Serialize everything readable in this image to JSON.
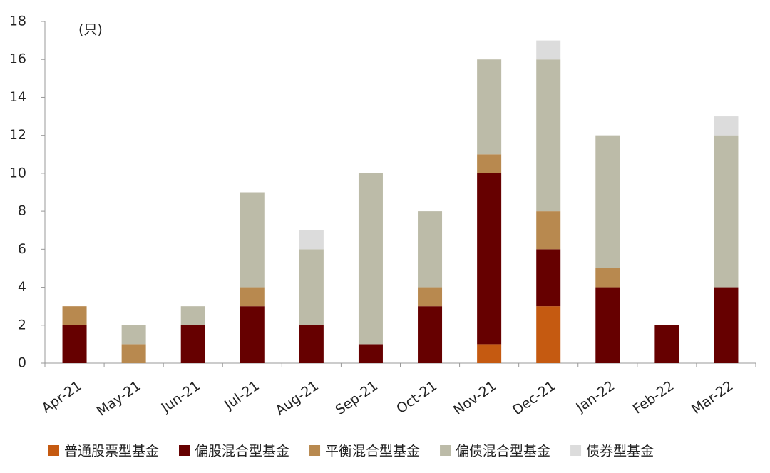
{
  "chart_data": {
    "type": "stacked-bar",
    "annotation": "(只)",
    "categories": [
      "Apr-21",
      "May-21",
      "Jun-21",
      "Jul-21",
      "Aug-21",
      "Sep-21",
      "Oct-21",
      "Nov-21",
      "Dec-21",
      "Jan-22",
      "Feb-22",
      "Mar-22"
    ],
    "series": [
      {
        "name": "普通股票型基金",
        "color": "#c55a11",
        "values": [
          0,
          0,
          0,
          0,
          0,
          0,
          0,
          1,
          3,
          0,
          0,
          0
        ]
      },
      {
        "name": "偏股混合型基金",
        "color": "#660000",
        "values": [
          2,
          0,
          2,
          3,
          2,
          1,
          3,
          9,
          3,
          4,
          2,
          4
        ]
      },
      {
        "name": "平衡混合型基金",
        "color": "#b8894f",
        "values": [
          1,
          1,
          0,
          1,
          0,
          0,
          1,
          1,
          2,
          1,
          0,
          0
        ]
      },
      {
        "name": "偏债混合型基金",
        "color": "#bcbba8",
        "values": [
          0,
          1,
          1,
          5,
          4,
          9,
          4,
          5,
          8,
          7,
          0,
          8
        ]
      },
      {
        "name": "债券型基金",
        "color": "#dcdcdc",
        "values": [
          0,
          0,
          0,
          0,
          1,
          0,
          0,
          0,
          1,
          0,
          0,
          1
        ]
      }
    ],
    "ylim": [
      0,
      18
    ],
    "yticks": [
      0,
      2,
      4,
      6,
      8,
      10,
      12,
      14,
      16,
      18
    ],
    "grid": false
  }
}
